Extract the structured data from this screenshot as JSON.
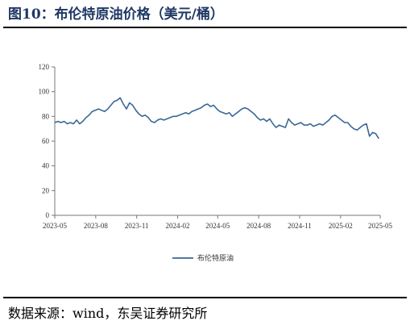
{
  "figure": {
    "title": "图10：布伦特原油价格（美元/桶）",
    "source": "数据来源：wind，东吴证券研究所"
  },
  "colors": {
    "line": "#3a6896",
    "axis": "#777777",
    "title": "#1f3864"
  },
  "chart_data": {
    "type": "line",
    "title": "",
    "xlabel": "",
    "ylabel": "",
    "xlim": [
      "2023-05-01",
      "2025-05-01"
    ],
    "ylim": [
      0,
      120
    ],
    "yticks": [
      "0",
      "20",
      "40",
      "60",
      "80",
      "100",
      "120"
    ],
    "xticks": [
      "2023-05",
      "2023-08",
      "2023-11",
      "2024-02",
      "2024-05",
      "2024-08",
      "2024-11",
      "2025-02",
      "2025-05"
    ],
    "grid": false,
    "legend": "bottom-center",
    "series": [
      {
        "name": "布伦特原油",
        "x": [
          "2023-05-01",
          "2023-05-08",
          "2023-05-15",
          "2023-05-22",
          "2023-05-29",
          "2023-06-05",
          "2023-06-12",
          "2023-06-19",
          "2023-06-26",
          "2023-07-03",
          "2023-07-10",
          "2023-07-17",
          "2023-07-24",
          "2023-07-31",
          "2023-08-07",
          "2023-08-14",
          "2023-08-21",
          "2023-08-28",
          "2023-09-04",
          "2023-09-11",
          "2023-09-18",
          "2023-09-25",
          "2023-10-02",
          "2023-10-09",
          "2023-10-16",
          "2023-10-23",
          "2023-10-30",
          "2023-11-06",
          "2023-11-13",
          "2023-11-20",
          "2023-11-27",
          "2023-12-04",
          "2023-12-11",
          "2023-12-18",
          "2023-12-25",
          "2024-01-01",
          "2024-01-08",
          "2024-01-15",
          "2024-01-22",
          "2024-01-29",
          "2024-02-05",
          "2024-02-12",
          "2024-02-19",
          "2024-02-26",
          "2024-03-04",
          "2024-03-11",
          "2024-03-18",
          "2024-03-25",
          "2024-04-01",
          "2024-04-08",
          "2024-04-15",
          "2024-04-22",
          "2024-04-29",
          "2024-05-06",
          "2024-05-13",
          "2024-05-20",
          "2024-05-27",
          "2024-06-03",
          "2024-06-10",
          "2024-06-17",
          "2024-06-24",
          "2024-07-01",
          "2024-07-08",
          "2024-07-15",
          "2024-07-22",
          "2024-07-29",
          "2024-08-05",
          "2024-08-12",
          "2024-08-19",
          "2024-08-26",
          "2024-09-02",
          "2024-09-09",
          "2024-09-16",
          "2024-09-23",
          "2024-09-30",
          "2024-10-07",
          "2024-10-14",
          "2024-10-21",
          "2024-10-28",
          "2024-11-04",
          "2024-11-11",
          "2024-11-18",
          "2024-11-25",
          "2024-12-02",
          "2024-12-09",
          "2024-12-16",
          "2024-12-23",
          "2024-12-30",
          "2025-01-06",
          "2025-01-13",
          "2025-01-20",
          "2025-01-27",
          "2025-02-03",
          "2025-02-10",
          "2025-02-17",
          "2025-02-24",
          "2025-03-03",
          "2025-03-10",
          "2025-03-17",
          "2025-03-24",
          "2025-03-31",
          "2025-04-07",
          "2025-04-14",
          "2025-04-21",
          "2025-04-28"
        ],
        "y": [
          75,
          76,
          75,
          76,
          74,
          75,
          74,
          77,
          74,
          76,
          79,
          81,
          84,
          85,
          86,
          85,
          84,
          86,
          89,
          92,
          93,
          95,
          90,
          86,
          91,
          89,
          85,
          82,
          80,
          81,
          79,
          76,
          75,
          77,
          78,
          77,
          78,
          79,
          80,
          80,
          81,
          82,
          83,
          82,
          84,
          85,
          86,
          87,
          89,
          90,
          88,
          89,
          86,
          84,
          83,
          82,
          83,
          80,
          82,
          84,
          86,
          87,
          86,
          84,
          82,
          79,
          77,
          78,
          76,
          78,
          74,
          71,
          73,
          72,
          71,
          78,
          75,
          73,
          74,
          75,
          73,
          73,
          74,
          72,
          73,
          74,
          73,
          75,
          77,
          80,
          81,
          79,
          77,
          75,
          75,
          72,
          70,
          69,
          71,
          73,
          74,
          64,
          67,
          66,
          62
        ]
      }
    ]
  }
}
